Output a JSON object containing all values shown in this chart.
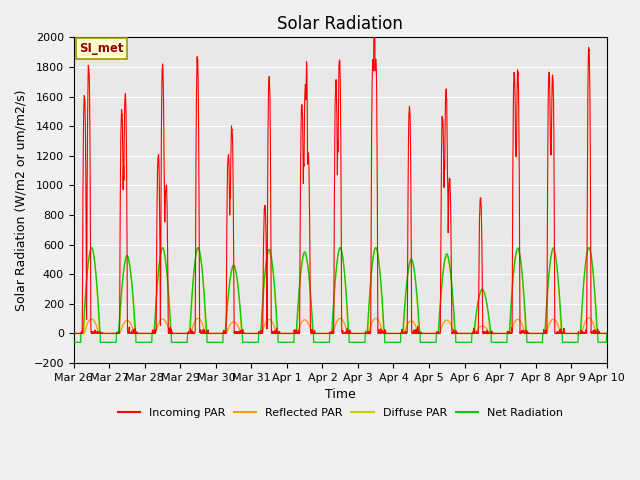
{
  "title": "Solar Radiation",
  "ylabel": "Solar Radiation (W/m2 or um/m2/s)",
  "xlabel": "Time",
  "ylim": [
    -200,
    2000
  ],
  "yticks": [
    -200,
    0,
    200,
    400,
    600,
    800,
    1000,
    1200,
    1400,
    1600,
    1800,
    2000
  ],
  "date_labels": [
    "Mar 26",
    "Mar 27",
    "Mar 28",
    "Mar 29",
    "Mar 30",
    "Mar 31",
    "Apr 1",
    "Apr 2",
    "Apr 3",
    "Apr 4",
    "Apr 5",
    "Apr 6",
    "Apr 7",
    "Apr 8",
    "Apr 9",
    "Apr 10"
  ],
  "annotation": "SI_met",
  "annotation_bg": "#ffffcc",
  "annotation_border": "#999900",
  "colors": {
    "incoming": "#ff0000",
    "reflected": "#ff9900",
    "diffuse": "#cccc00",
    "net": "#00cc00"
  },
  "legend_labels": [
    "Incoming PAR",
    "Reflected PAR",
    "Diffuse PAR",
    "Net Radiation"
  ],
  "plot_bg": "#e8e8e8",
  "title_fontsize": 12,
  "label_fontsize": 9,
  "tick_fontsize": 8
}
